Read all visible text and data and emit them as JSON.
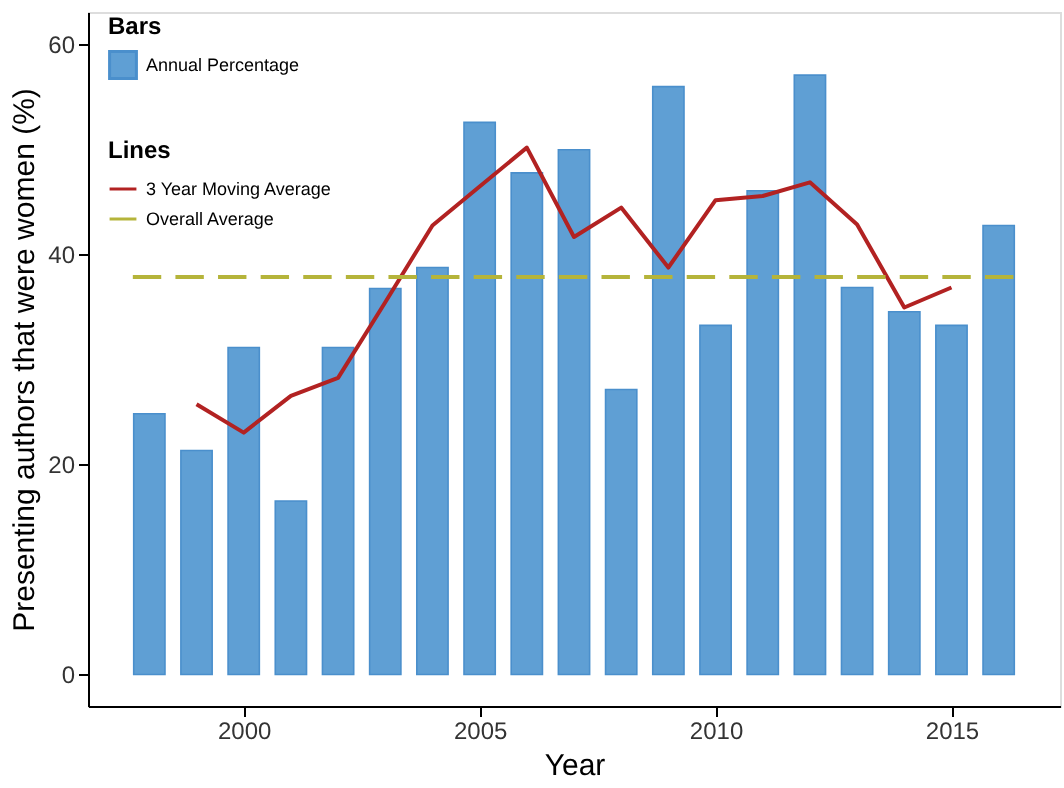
{
  "chart_data": {
    "type": "bar",
    "xlabel": "Year",
    "ylabel": "Presenting authors that were women (%)",
    "legend_title": [
      "Bars",
      "Lines"
    ],
    "x": [
      1998,
      1999,
      2000,
      2001,
      2002,
      2003,
      2004,
      2005,
      2006,
      2007,
      2008,
      2009,
      2010,
      2011,
      2012,
      2013,
      2014,
      2015,
      2016
    ],
    "series": [
      {
        "name": "Annual Percentage",
        "color": "#5f9fd4",
        "values": [
          24.8,
          21.3,
          31.1,
          16.5,
          31.1,
          36.7,
          38.7,
          52.5,
          47.7,
          49.9,
          27.1,
          55.9,
          33.2,
          46.0,
          57.0,
          36.8,
          34.5,
          33.2,
          42.7
        ]
      },
      {
        "name": "3 Year Moving Average",
        "type": "line",
        "color": "#b22222",
        "line_style": "solid",
        "x": [
          1999,
          2000,
          2001,
          2002,
          2003,
          2004,
          2005,
          2006,
          2007,
          2008,
          2009,
          2010,
          2011,
          2012,
          2013,
          2014,
          2015
        ],
        "values": [
          25.7,
          23.0,
          26.5,
          28.2,
          35.4,
          42.7,
          46.4,
          50.1,
          41.6,
          44.4,
          38.7,
          45.1,
          45.5,
          46.8,
          42.8,
          34.9,
          36.8
        ]
      },
      {
        "name": "Overall Average",
        "type": "line",
        "color": "#b5b43a",
        "line_style": "dashed",
        "x": [
          1997.65,
          2016.35
        ],
        "values": [
          37.8,
          37.8
        ]
      }
    ],
    "xlim": [
      1996.7,
      2017.3
    ],
    "xticks": [
      2000,
      2005,
      2010,
      2015
    ],
    "ylim": [
      -3,
      63
    ],
    "yticks": [
      0,
      20,
      40,
      60
    ],
    "grid": false,
    "legend": "top left",
    "marker": "none"
  }
}
